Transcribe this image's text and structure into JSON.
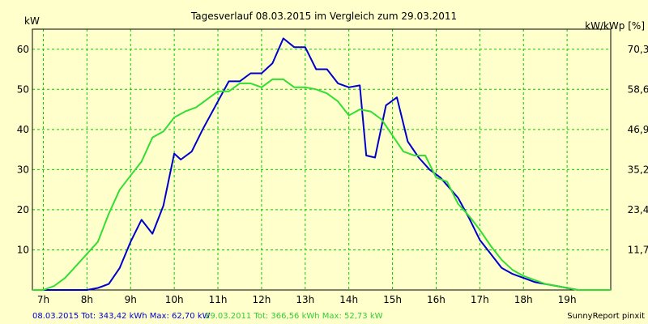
{
  "chart_data": {
    "type": "line",
    "title": "Tagesverlauf 08.03.2015 im Vergleich zum 29.03.2011",
    "ylabel_left": "kW",
    "ylabel_right": "kW/kWp [%]",
    "xlim": [
      6.75,
      20.0
    ],
    "ylim": [
      0,
      65
    ],
    "x_ticks": [
      {
        "value": 7,
        "label": "7h"
      },
      {
        "value": 8,
        "label": "8h"
      },
      {
        "value": 9,
        "label": "9h"
      },
      {
        "value": 10,
        "label": "10h"
      },
      {
        "value": 11,
        "label": "11h"
      },
      {
        "value": 12,
        "label": "12h"
      },
      {
        "value": 13,
        "label": "13h"
      },
      {
        "value": 14,
        "label": "14h"
      },
      {
        "value": 15,
        "label": "15h"
      },
      {
        "value": 16,
        "label": "16h"
      },
      {
        "value": 17,
        "label": "17h"
      },
      {
        "value": 18,
        "label": "18h"
      },
      {
        "value": 19,
        "label": "19h"
      }
    ],
    "y_ticks_left": [
      {
        "value": 10,
        "label": "10"
      },
      {
        "value": 20,
        "label": "20"
      },
      {
        "value": 30,
        "label": "30"
      },
      {
        "value": 40,
        "label": "40"
      },
      {
        "value": 50,
        "label": "50"
      },
      {
        "value": 60,
        "label": "60"
      }
    ],
    "y_ticks_right": [
      {
        "value": 10,
        "label": "11,7"
      },
      {
        "value": 20,
        "label": "23,4"
      },
      {
        "value": 30,
        "label": "35,2"
      },
      {
        "value": 40,
        "label": "46,9"
      },
      {
        "value": 50,
        "label": "58,6"
      },
      {
        "value": 60,
        "label": "70,3"
      }
    ],
    "grid": true,
    "series": [
      {
        "name": "08.03.2015",
        "color": "#0000CC",
        "x": [
          6.75,
          7.0,
          7.25,
          7.5,
          7.75,
          8.0,
          8.25,
          8.5,
          8.75,
          9.0,
          9.25,
          9.5,
          9.75,
          10.0,
          10.15,
          10.4,
          10.65,
          11.0,
          11.25,
          11.5,
          11.75,
          12.0,
          12.25,
          12.5,
          12.75,
          13.0,
          13.25,
          13.5,
          13.75,
          14.0,
          14.25,
          14.4,
          14.6,
          14.85,
          15.1,
          15.35,
          15.6,
          15.85,
          16.1,
          16.5,
          16.75,
          17.0,
          17.25,
          17.5,
          17.75,
          18.0,
          18.25,
          18.5,
          18.75,
          19.0,
          19.25,
          19.5,
          19.75,
          20.0
        ],
        "y": [
          0,
          0,
          0,
          0,
          0,
          0,
          0.5,
          1.5,
          5.5,
          12,
          17.5,
          14,
          21,
          34,
          32.5,
          34.5,
          40,
          47,
          52,
          52,
          54,
          54,
          56.5,
          62.7,
          60.5,
          60.5,
          55,
          55,
          51.5,
          50.5,
          51,
          33.5,
          33,
          46,
          48,
          37,
          33,
          30,
          28,
          23,
          18,
          12.5,
          9,
          5.5,
          4,
          3,
          2,
          1.5,
          1,
          0.5,
          0,
          0,
          0,
          0
        ]
      },
      {
        "name": "29.03.2011",
        "color": "#33DD33",
        "x": [
          6.75,
          7.0,
          7.25,
          7.5,
          7.75,
          8.0,
          8.25,
          8.5,
          8.75,
          9.0,
          9.25,
          9.5,
          9.75,
          10.0,
          10.25,
          10.5,
          10.75,
          11.0,
          11.25,
          11.5,
          11.75,
          12.0,
          12.25,
          12.5,
          12.75,
          13.0,
          13.25,
          13.5,
          13.75,
          14.0,
          14.25,
          14.5,
          14.75,
          15.0,
          15.25,
          15.5,
          15.75,
          16.0,
          16.25,
          16.5,
          16.75,
          17.0,
          17.25,
          17.5,
          17.75,
          18.0,
          18.25,
          18.5,
          18.75,
          19.0,
          19.25,
          19.5,
          19.75,
          20.0
        ],
        "y": [
          0,
          0,
          1,
          3,
          6,
          9,
          12,
          19,
          25,
          28.5,
          32,
          38,
          39.5,
          43,
          44.5,
          45.5,
          47.5,
          49.5,
          49.5,
          51.5,
          51.5,
          50.5,
          52.5,
          52.5,
          50.5,
          50.5,
          50,
          49,
          47,
          43.5,
          45,
          44.5,
          42.5,
          38.5,
          34.5,
          33.5,
          33.5,
          28,
          27,
          21.5,
          18.5,
          15,
          11,
          7.5,
          5,
          3.5,
          2.5,
          1.5,
          1,
          0.5,
          0,
          0,
          0,
          0
        ]
      }
    ]
  },
  "legend": {
    "series1": "08.03.2015 Tot: 343,42 kWh Max: 62,70 kW",
    "series2": "29.03.2011 Tot: 366,56 kWh Max: 52,73 kW",
    "credit": "SunnyReport pinxit"
  }
}
